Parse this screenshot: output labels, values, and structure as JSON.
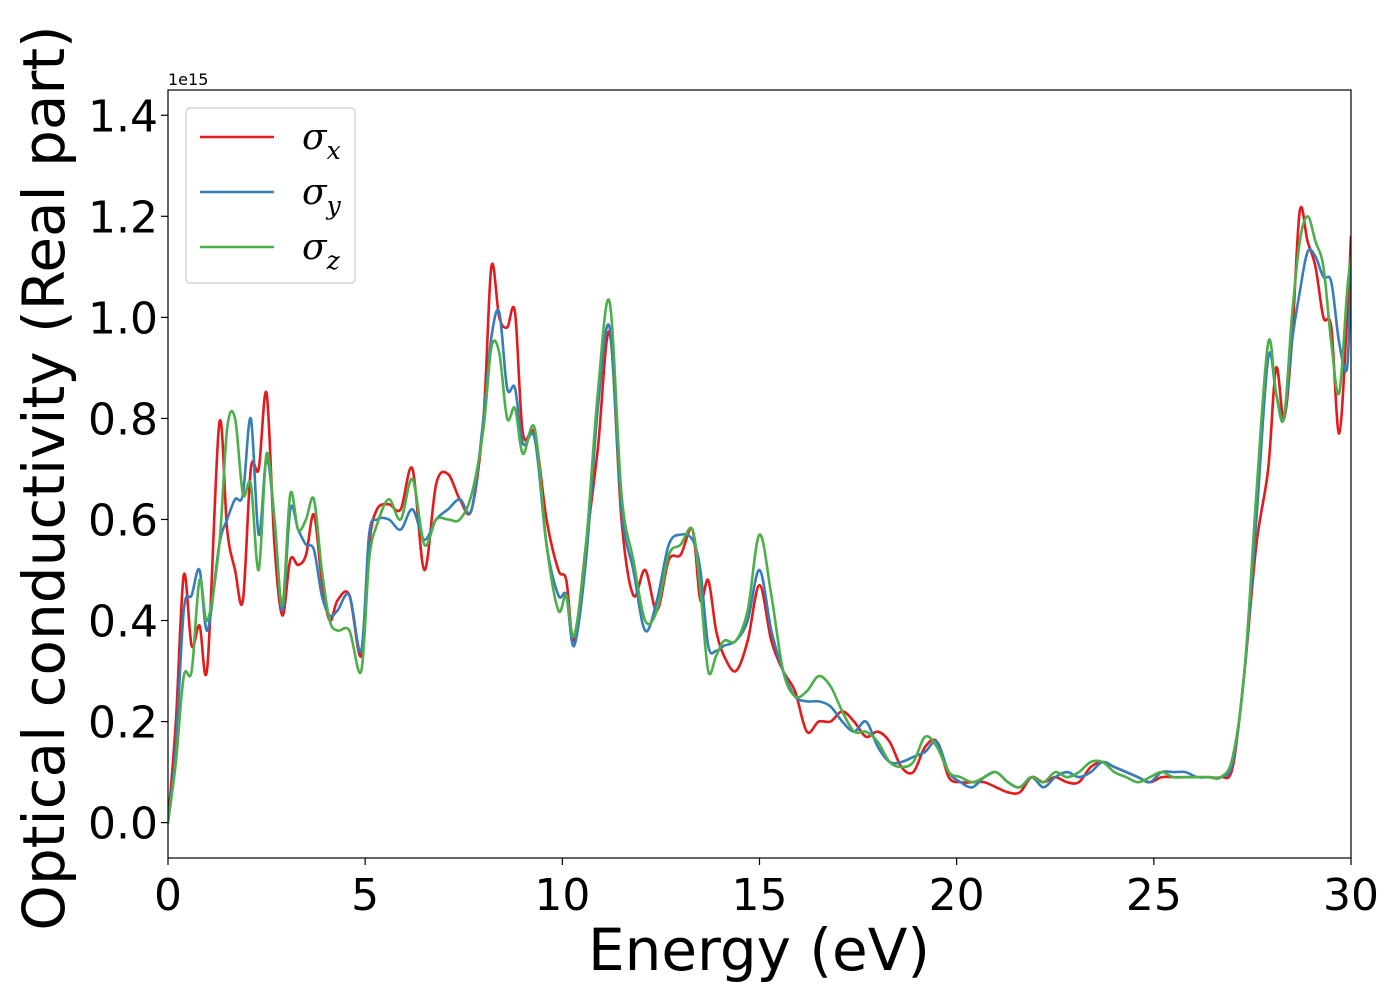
{
  "chart_data": {
    "type": "line",
    "xlabel": "Energy (eV)",
    "ylabel": "Optical conductivity (Real part)",
    "y_offset_label": "1e15",
    "xlim": [
      0,
      30
    ],
    "ylim": [
      -0.07,
      1.45
    ],
    "xticks": [
      0,
      5,
      10,
      15,
      20,
      25,
      30
    ],
    "yticks": [
      0.0,
      0.2,
      0.4,
      0.6,
      0.8,
      1.0,
      1.2,
      1.4
    ],
    "xtick_labels": [
      "0",
      "5",
      "10",
      "15",
      "20",
      "25",
      "30"
    ],
    "ytick_labels": [
      "0.0",
      "0.2",
      "0.4",
      "0.6",
      "0.8",
      "1.0",
      "1.2",
      "1.4"
    ],
    "grid": false,
    "legend_position": "top-left",
    "series": [
      {
        "name": "σ",
        "subscript": "x",
        "color": "#e41a1c",
        "x": [
          0.0,
          0.2,
          0.4,
          0.6,
          0.8,
          1.0,
          1.3,
          1.5,
          1.7,
          1.9,
          2.1,
          2.3,
          2.5,
          2.7,
          2.9,
          3.1,
          3.3,
          3.5,
          3.7,
          3.9,
          4.1,
          4.3,
          4.6,
          4.9,
          5.1,
          5.3,
          5.6,
          5.9,
          6.2,
          6.5,
          6.8,
          7.1,
          7.4,
          7.7,
          8.0,
          8.2,
          8.4,
          8.6,
          8.8,
          9.0,
          9.3,
          9.6,
          9.9,
          10.1,
          10.3,
          10.6,
          10.9,
          11.2,
          11.5,
          11.8,
          12.1,
          12.4,
          12.7,
          13.0,
          13.3,
          13.5,
          13.7,
          13.9,
          14.1,
          14.4,
          14.7,
          15.0,
          15.3,
          15.6,
          15.9,
          16.2,
          16.5,
          16.8,
          17.1,
          17.4,
          17.7,
          18.0,
          18.3,
          18.6,
          18.9,
          19.2,
          19.5,
          19.8,
          20.1,
          20.4,
          20.7,
          21.0,
          21.3,
          21.6,
          21.9,
          22.2,
          22.5,
          22.8,
          23.1,
          23.4,
          23.7,
          24.0,
          24.3,
          24.6,
          24.9,
          25.2,
          25.5,
          25.8,
          26.1,
          26.4,
          26.7,
          27.0,
          27.3,
          27.6,
          27.9,
          28.1,
          28.3,
          28.5,
          28.7,
          28.9,
          29.1,
          29.3,
          29.5,
          29.7,
          29.9,
          30.0
        ],
        "y": [
          0.0,
          0.2,
          0.49,
          0.35,
          0.39,
          0.31,
          0.79,
          0.58,
          0.5,
          0.44,
          0.7,
          0.7,
          0.85,
          0.55,
          0.41,
          0.52,
          0.51,
          0.53,
          0.61,
          0.48,
          0.4,
          0.44,
          0.45,
          0.33,
          0.55,
          0.62,
          0.63,
          0.62,
          0.7,
          0.5,
          0.67,
          0.69,
          0.64,
          0.62,
          0.8,
          1.1,
          1.0,
          0.98,
          1.01,
          0.77,
          0.77,
          0.6,
          0.5,
          0.48,
          0.36,
          0.55,
          0.74,
          0.97,
          0.6,
          0.45,
          0.5,
          0.42,
          0.52,
          0.53,
          0.58,
          0.44,
          0.48,
          0.38,
          0.33,
          0.3,
          0.36,
          0.47,
          0.36,
          0.3,
          0.26,
          0.18,
          0.2,
          0.2,
          0.22,
          0.2,
          0.17,
          0.18,
          0.16,
          0.11,
          0.1,
          0.15,
          0.16,
          0.09,
          0.08,
          0.08,
          0.08,
          0.07,
          0.06,
          0.06,
          0.09,
          0.08,
          0.09,
          0.08,
          0.08,
          0.11,
          0.12,
          0.11,
          0.1,
          0.09,
          0.08,
          0.09,
          0.09,
          0.09,
          0.09,
          0.09,
          0.09,
          0.11,
          0.3,
          0.55,
          0.7,
          0.9,
          0.8,
          0.95,
          1.21,
          1.15,
          1.1,
          1.0,
          0.98,
          0.77,
          1.0,
          1.16
        ]
      },
      {
        "name": "σ",
        "subscript": "y",
        "color": "#377eb8",
        "x": [
          0.0,
          0.2,
          0.4,
          0.6,
          0.8,
          1.0,
          1.3,
          1.5,
          1.7,
          1.9,
          2.1,
          2.3,
          2.5,
          2.7,
          2.9,
          3.1,
          3.3,
          3.5,
          3.7,
          3.9,
          4.1,
          4.3,
          4.6,
          4.9,
          5.1,
          5.3,
          5.6,
          5.9,
          6.2,
          6.5,
          6.8,
          7.1,
          7.4,
          7.7,
          8.0,
          8.2,
          8.4,
          8.6,
          8.8,
          9.0,
          9.3,
          9.6,
          9.9,
          10.1,
          10.3,
          10.6,
          10.9,
          11.2,
          11.5,
          11.8,
          12.1,
          12.4,
          12.7,
          13.0,
          13.3,
          13.5,
          13.7,
          13.9,
          14.1,
          14.4,
          14.7,
          15.0,
          15.3,
          15.6,
          15.9,
          16.2,
          16.5,
          16.8,
          17.1,
          17.4,
          17.7,
          18.0,
          18.3,
          18.6,
          18.9,
          19.2,
          19.5,
          19.8,
          20.1,
          20.4,
          20.7,
          21.0,
          21.3,
          21.6,
          21.9,
          22.2,
          22.5,
          22.8,
          23.1,
          23.4,
          23.7,
          24.0,
          24.3,
          24.6,
          24.9,
          25.2,
          25.5,
          25.8,
          26.1,
          26.4,
          26.7,
          27.0,
          27.3,
          27.6,
          27.9,
          28.1,
          28.3,
          28.5,
          28.7,
          28.9,
          29.1,
          29.3,
          29.5,
          29.7,
          29.9,
          30.0
        ],
        "y": [
          0.0,
          0.15,
          0.42,
          0.45,
          0.5,
          0.38,
          0.55,
          0.6,
          0.64,
          0.65,
          0.8,
          0.57,
          0.72,
          0.6,
          0.42,
          0.62,
          0.58,
          0.55,
          0.54,
          0.45,
          0.41,
          0.42,
          0.45,
          0.34,
          0.57,
          0.6,
          0.6,
          0.58,
          0.62,
          0.56,
          0.6,
          0.62,
          0.64,
          0.62,
          0.8,
          0.96,
          1.01,
          0.86,
          0.86,
          0.75,
          0.76,
          0.55,
          0.45,
          0.45,
          0.35,
          0.52,
          0.82,
          0.98,
          0.62,
          0.5,
          0.38,
          0.44,
          0.55,
          0.57,
          0.56,
          0.5,
          0.35,
          0.34,
          0.35,
          0.36,
          0.4,
          0.5,
          0.38,
          0.3,
          0.25,
          0.24,
          0.24,
          0.23,
          0.2,
          0.18,
          0.2,
          0.15,
          0.12,
          0.12,
          0.13,
          0.14,
          0.16,
          0.1,
          0.08,
          0.07,
          0.09,
          0.1,
          0.08,
          0.07,
          0.09,
          0.07,
          0.09,
          0.1,
          0.09,
          0.1,
          0.12,
          0.11,
          0.1,
          0.09,
          0.08,
          0.1,
          0.1,
          0.1,
          0.09,
          0.09,
          0.09,
          0.12,
          0.3,
          0.6,
          0.92,
          0.85,
          0.8,
          0.95,
          1.05,
          1.13,
          1.12,
          1.08,
          1.07,
          0.95,
          0.9,
          1.1
        ]
      },
      {
        "name": "σ",
        "subscript": "z",
        "color": "#4daf4a",
        "x": [
          0.0,
          0.2,
          0.4,
          0.6,
          0.8,
          1.0,
          1.3,
          1.5,
          1.7,
          1.9,
          2.1,
          2.3,
          2.5,
          2.7,
          2.9,
          3.1,
          3.3,
          3.5,
          3.7,
          3.9,
          4.1,
          4.3,
          4.6,
          4.9,
          5.1,
          5.3,
          5.6,
          5.9,
          6.2,
          6.5,
          6.8,
          7.1,
          7.4,
          7.7,
          8.0,
          8.2,
          8.4,
          8.6,
          8.8,
          9.0,
          9.3,
          9.6,
          9.9,
          10.1,
          10.3,
          10.6,
          10.9,
          11.2,
          11.5,
          11.8,
          12.1,
          12.4,
          12.7,
          13.0,
          13.3,
          13.5,
          13.7,
          13.9,
          14.1,
          14.4,
          14.7,
          15.0,
          15.3,
          15.6,
          15.9,
          16.2,
          16.5,
          16.8,
          17.1,
          17.4,
          17.7,
          18.0,
          18.3,
          18.6,
          18.9,
          19.2,
          19.5,
          19.8,
          20.1,
          20.4,
          20.7,
          21.0,
          21.3,
          21.6,
          21.9,
          22.2,
          22.5,
          22.8,
          23.1,
          23.4,
          23.7,
          24.0,
          24.3,
          24.6,
          24.9,
          25.2,
          25.5,
          25.8,
          26.1,
          26.4,
          26.7,
          27.0,
          27.3,
          27.6,
          27.9,
          28.1,
          28.3,
          28.5,
          28.7,
          28.9,
          29.1,
          29.3,
          29.5,
          29.7,
          29.9,
          30.0
        ],
        "y": [
          0.0,
          0.12,
          0.29,
          0.3,
          0.48,
          0.4,
          0.55,
          0.78,
          0.8,
          0.65,
          0.67,
          0.5,
          0.73,
          0.6,
          0.43,
          0.65,
          0.58,
          0.6,
          0.64,
          0.5,
          0.4,
          0.38,
          0.38,
          0.3,
          0.52,
          0.59,
          0.64,
          0.6,
          0.68,
          0.55,
          0.6,
          0.6,
          0.6,
          0.65,
          0.78,
          0.94,
          0.93,
          0.8,
          0.82,
          0.73,
          0.78,
          0.55,
          0.42,
          0.45,
          0.37,
          0.55,
          0.85,
          1.03,
          0.65,
          0.52,
          0.4,
          0.42,
          0.53,
          0.55,
          0.58,
          0.46,
          0.3,
          0.33,
          0.36,
          0.36,
          0.42,
          0.57,
          0.45,
          0.3,
          0.25,
          0.26,
          0.29,
          0.27,
          0.22,
          0.18,
          0.18,
          0.16,
          0.12,
          0.11,
          0.12,
          0.17,
          0.15,
          0.1,
          0.09,
          0.08,
          0.09,
          0.1,
          0.08,
          0.07,
          0.09,
          0.08,
          0.1,
          0.09,
          0.1,
          0.12,
          0.12,
          0.1,
          0.09,
          0.08,
          0.09,
          0.1,
          0.09,
          0.09,
          0.09,
          0.09,
          0.09,
          0.13,
          0.3,
          0.65,
          0.95,
          0.85,
          0.8,
          1.0,
          1.15,
          1.2,
          1.15,
          1.1,
          0.95,
          0.85,
          1.05,
          1.12
        ]
      }
    ]
  }
}
